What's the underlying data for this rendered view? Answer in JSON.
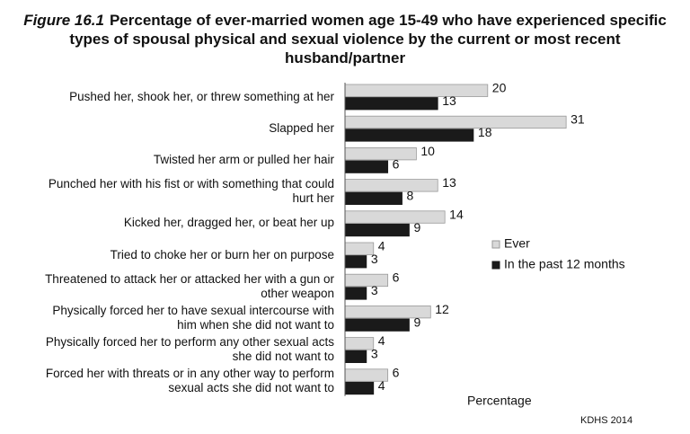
{
  "chart_data": {
    "type": "bar",
    "orientation": "horizontal",
    "figure": "Figure 16.1",
    "title": "Percentage of ever-married women age 15-49 who have experienced specific types of spousal physical and sexual violence by the current or most recent husband/partner",
    "categories": [
      "Pushed her, shook her, or threw something at her",
      "Slapped her",
      "Twisted her arm or pulled her hair",
      "Punched her with his fist or with something that could hurt her",
      "Kicked her, dragged her, or beat her up",
      "Tried to choke her or burn her on purpose",
      "Threatened to attack her or attacked her with a gun or other weapon",
      "Physically forced her to have sexual intercourse with him when she did not want to",
      "Physically forced her to perform any other sexual acts she did not want to",
      "Forced her with threats or in any other way to perform sexual acts she did not want to"
    ],
    "series": [
      {
        "name": "Ever",
        "color": "#d9d9d9",
        "values": [
          20,
          31,
          10,
          13,
          14,
          4,
          6,
          12,
          4,
          6
        ]
      },
      {
        "name": "In the past 12 months",
        "color": "#1a1a1a",
        "values": [
          13,
          18,
          6,
          8,
          9,
          3,
          3,
          9,
          3,
          4
        ]
      }
    ],
    "x_label": "Percentage",
    "source": "KDHS 2014",
    "legend": "right"
  }
}
